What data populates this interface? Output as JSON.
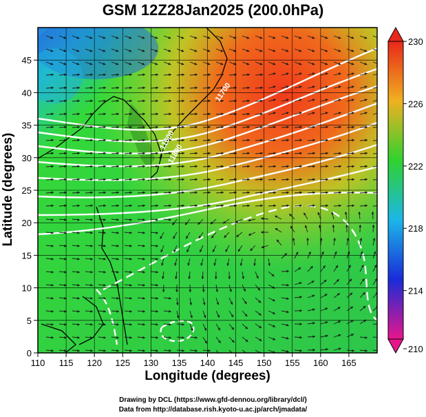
{
  "title": "GSM 12Z28Jan2025 (200.0hPa)",
  "x_axis": {
    "label": "Longitude (degrees)",
    "range": [
      110,
      170
    ],
    "ticks": [
      110,
      115,
      120,
      125,
      130,
      135,
      140,
      145,
      150,
      155,
      160,
      165
    ]
  },
  "y_axis": {
    "label": "Latitude  (degrees)",
    "range": [
      0,
      50
    ],
    "ticks": [
      0,
      5,
      10,
      15,
      20,
      25,
      30,
      35,
      40,
      45
    ]
  },
  "colorbar": {
    "range": [
      210,
      230
    ],
    "ticks": [
      210,
      214,
      218,
      222,
      226,
      230
    ],
    "colors": [
      "#e8168c",
      "#1a2bd8",
      "#1cb6e8",
      "#2fd22f",
      "#f0b020",
      "#e8281a"
    ]
  },
  "contour_labels": [
    "11600",
    "11700",
    "11800"
  ],
  "credits": {
    "line1": "Drawing by DCL (https://www.gfd-dennou.org/library/dcl/)",
    "line2": "Data from http://database.rish.kyoto-u.ac.jp/arch/jmadata/"
  }
}
